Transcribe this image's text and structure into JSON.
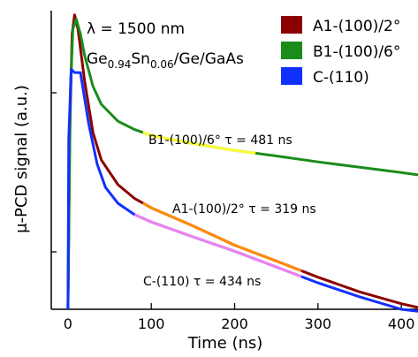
{
  "chart_data": {
    "type": "line",
    "title": "",
    "xlabel": "Time (ns)",
    "ylabel": "μ-PCD signal (a.u.)",
    "xlim": [
      -20,
      420
    ],
    "ylim_log": [
      0.05,
      1.15
    ],
    "x_ticks": [
      0,
      100,
      200,
      300,
      400
    ],
    "y_scale": "log",
    "y_ticks_shown": false,
    "grid": false,
    "legend_position": "top-right",
    "annotations": {
      "wavelength": "λ = 1500 nm",
      "sample_main": "Ge",
      "sample_sub1": "0.94",
      "sample_mid": "Sn",
      "sample_sub2": "0.06",
      "sample_tail": "/Ge/GaAs",
      "label_b1": "B1-(100)/6°  τ = 481 ns",
      "label_a1": "A1-(100)/2°  τ = 319 ns",
      "label_c": "C-(110)  τ = 434 ns"
    },
    "series": [
      {
        "name": "A1-(100)/2°",
        "color": "#8b0000",
        "tau_ns": 319,
        "points": [
          [
            0,
            0.05
          ],
          [
            2,
            0.3
          ],
          [
            5,
            0.9
          ],
          [
            8,
            1.1
          ],
          [
            12,
            0.95
          ],
          [
            20,
            0.55
          ],
          [
            30,
            0.32
          ],
          [
            40,
            0.24
          ],
          [
            60,
            0.185
          ],
          [
            80,
            0.16
          ],
          [
            100,
            0.145
          ],
          [
            150,
            0.12
          ],
          [
            200,
            0.098
          ],
          [
            250,
            0.083
          ],
          [
            300,
            0.07
          ],
          [
            350,
            0.06
          ],
          [
            400,
            0.053
          ],
          [
            420,
            0.051
          ]
        ]
      },
      {
        "name": "B1-(100)/6°",
        "color": "#1a8c1a",
        "tau_ns": 481,
        "points": [
          [
            0,
            0.05
          ],
          [
            3,
            0.5
          ],
          [
            6,
            0.95
          ],
          [
            10,
            1.05
          ],
          [
            15,
            0.9
          ],
          [
            20,
            0.72
          ],
          [
            30,
            0.52
          ],
          [
            40,
            0.43
          ],
          [
            60,
            0.36
          ],
          [
            80,
            0.33
          ],
          [
            100,
            0.31
          ],
          [
            150,
            0.285
          ],
          [
            200,
            0.265
          ],
          [
            250,
            0.25
          ],
          [
            300,
            0.235
          ],
          [
            350,
            0.222
          ],
          [
            400,
            0.21
          ],
          [
            420,
            0.205
          ]
        ]
      },
      {
        "name": "C-(110)",
        "color": "#1030ff",
        "tau_ns": 434,
        "points": [
          [
            0,
            0.05
          ],
          [
            1,
            0.3
          ],
          [
            4,
            0.62
          ],
          [
            8,
            0.6
          ],
          [
            15,
            0.6
          ],
          [
            25,
            0.35
          ],
          [
            35,
            0.23
          ],
          [
            45,
            0.18
          ],
          [
            60,
            0.152
          ],
          [
            80,
            0.135
          ],
          [
            100,
            0.125
          ],
          [
            150,
            0.107
          ],
          [
            200,
            0.092
          ],
          [
            250,
            0.078
          ],
          [
            300,
            0.066
          ],
          [
            350,
            0.057
          ],
          [
            400,
            0.05
          ],
          [
            420,
            0.049
          ]
        ]
      }
    ],
    "fits": [
      {
        "name": "B1 fit",
        "color": "#ffff33",
        "x_range": [
          90,
          225
        ],
        "series": "B1-(100)/6°"
      },
      {
        "name": "A1 fit",
        "color": "#ff8c00",
        "x_range": [
          90,
          280
        ],
        "series": "A1-(100)/2°"
      },
      {
        "name": "C fit",
        "color": "#ee82ee",
        "x_range": [
          80,
          280
        ],
        "series": "C-(110)"
      }
    ]
  }
}
